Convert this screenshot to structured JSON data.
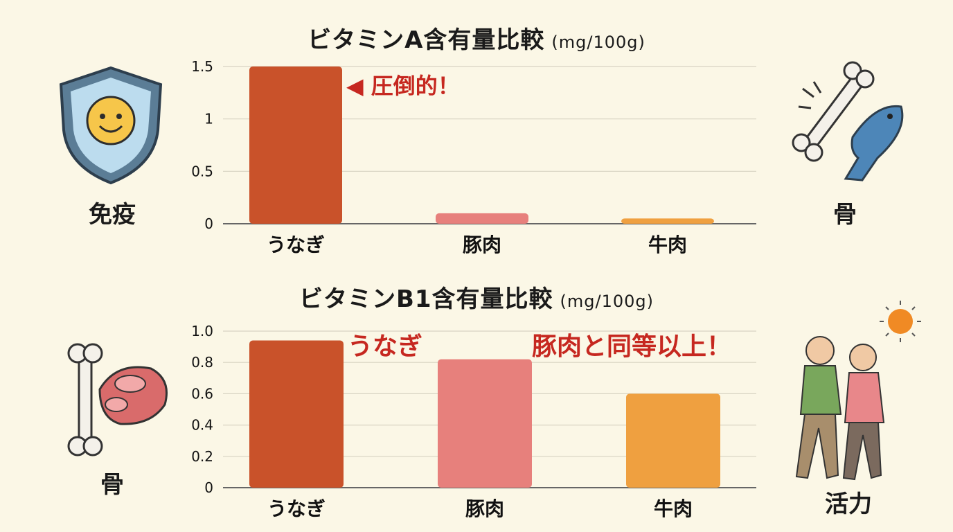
{
  "charts": {
    "a": {
      "title": "ビタミンA含有量比較",
      "unit": "(mg/100g)",
      "callout": "◀ 圧倒的！"
    },
    "b": {
      "title": "ビタミンB1含有量比較",
      "unit": "(mg/100g)",
      "callout_1": "うなぎ",
      "callout_2": "豚肉と同等以上！"
    }
  },
  "side_labels": {
    "immunity": "免疫",
    "bone_top": "骨",
    "bone_bottom": "骨",
    "vitality": "活力"
  },
  "icons": [
    "shield-smile-icon",
    "bone-fish-icon",
    "bone-meat-icon",
    "elderly-walking-sun-icon"
  ],
  "colors": {
    "background": "#fbf7e6",
    "unagi": "#c9522a",
    "pork": "#e7807c",
    "beef": "#efa040",
    "callout": "#c62820"
  },
  "chart_data": [
    {
      "type": "bar",
      "title": "ビタミンA含有量比較 (mg/100g)",
      "categories": [
        "うなぎ",
        "豚肉",
        "牛肉"
      ],
      "values": [
        1.5,
        0.1,
        0.05
      ],
      "colors": [
        "#c9522a",
        "#e7807c",
        "#efa040"
      ],
      "ylim": [
        0,
        1.5
      ],
      "yticks": [
        "0",
        "0.5",
        "1",
        "1.5"
      ],
      "ytick_values": [
        0,
        0.5,
        1,
        1.5
      ],
      "grid": true
    },
    {
      "type": "bar",
      "title": "ビタミンB1含有量比較 (mg/100g)",
      "categories": [
        "うなぎ",
        "豚肉",
        "牛肉"
      ],
      "values": [
        0.94,
        0.82,
        0.6
      ],
      "colors": [
        "#c9522a",
        "#e7807c",
        "#efa040"
      ],
      "ylim": [
        0,
        1.0
      ],
      "yticks": [
        "0",
        "0.2",
        "0.4",
        "0.6",
        "0.8",
        "1.0"
      ],
      "ytick_values": [
        0,
        0.2,
        0.4,
        0.6,
        0.8,
        1.0
      ],
      "grid": true
    }
  ]
}
